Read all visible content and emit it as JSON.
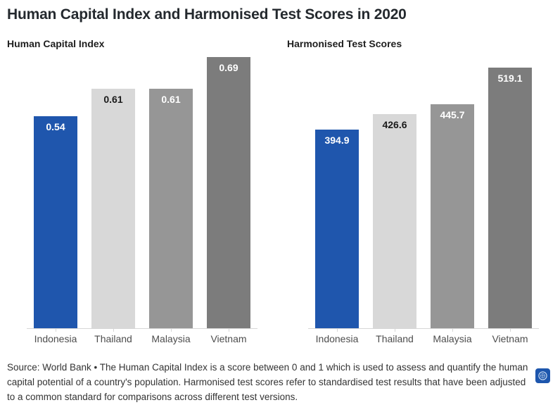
{
  "title": "Human Capital Index and Harmonised Test Scores in 2020",
  "footer": {
    "text": "Source: World Bank • The Human Capital Index is a score between 0 and 1 which is used to assess and quantify the human capital potential of a country's population. Harmonised test scores refer to standardised test results that have been adjusted to a common standard for comparisons across different test versions."
  },
  "colors": {
    "indonesia_blue": "#1f56ad",
    "thailand_gray": "#d8d8d8",
    "malaysia_gray": "#969696",
    "vietnam_gray": "#7c7c7c",
    "axis_line": "#d6d6d6",
    "title_text": "#24292e"
  },
  "logo": {
    "icon": "seal-logo",
    "background": "#1d56ad"
  },
  "chart_data": [
    {
      "type": "bar",
      "title": "Human Capital Index",
      "categories": [
        "Indonesia",
        "Thailand",
        "Malaysia",
        "Vietnam"
      ],
      "values": [
        0.54,
        0.61,
        0.61,
        0.69
      ],
      "value_labels": [
        "0.54",
        "0.61",
        "0.61",
        "0.69"
      ],
      "bar_colors": [
        "#1f56ad",
        "#d8d8d8",
        "#969696",
        "#7c7c7c"
      ],
      "value_label_colors": [
        "#ffffff",
        "#1a1a1a",
        "#ffffff",
        "#ffffff"
      ],
      "xlabel": "",
      "ylabel": "",
      "ylim": [
        0,
        0.69
      ],
      "grid": false,
      "legend": false
    },
    {
      "type": "bar",
      "title": "Harmonised Test Scores",
      "categories": [
        "Indonesia",
        "Thailand",
        "Malaysia",
        "Vietnam"
      ],
      "values": [
        394.9,
        426.6,
        445.7,
        519.1
      ],
      "value_labels": [
        "394.9",
        "426.6",
        "445.7",
        "519.1"
      ],
      "bar_colors": [
        "#1f56ad",
        "#d8d8d8",
        "#969696",
        "#7c7c7c"
      ],
      "value_label_colors": [
        "#ffffff",
        "#1a1a1a",
        "#ffffff",
        "#ffffff"
      ],
      "xlabel": "",
      "ylabel": "",
      "ylim": [
        0,
        540
      ],
      "grid": false,
      "legend": false
    }
  ]
}
